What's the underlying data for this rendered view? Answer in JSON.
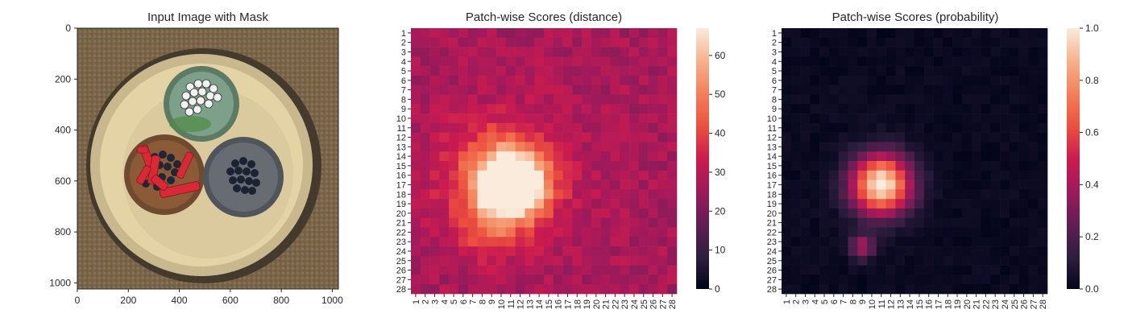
{
  "panels": [
    {
      "title": "Input Image with Mask",
      "xticks": [
        "0",
        "200",
        "400",
        "600",
        "800",
        "1000"
      ],
      "yticks": [
        "0",
        "200",
        "400",
        "600",
        "800",
        "1000"
      ],
      "xtick_values": [
        0,
        200,
        400,
        600,
        800,
        1000
      ],
      "ytick_values": [
        0,
        200,
        400,
        600,
        800,
        1000
      ],
      "extent": [
        0,
        1024
      ]
    },
    {
      "title": "Patch-wise Scores (distance)",
      "colorbar_ticks": [
        "0",
        "10",
        "20",
        "30",
        "40",
        "50",
        "60"
      ],
      "colorbar_values": [
        0,
        10,
        20,
        30,
        40,
        50,
        60
      ],
      "vmin": 0,
      "vmax": 67
    },
    {
      "title": "Patch-wise Scores (probability)",
      "colorbar_ticks": [
        "0.0",
        "0.2",
        "0.4",
        "0.6",
        "0.8",
        "1.0"
      ],
      "colorbar_values": [
        0.0,
        0.2,
        0.4,
        0.6,
        0.8,
        1.0
      ],
      "vmin": 0,
      "vmax": 1
    }
  ],
  "chart_data": [
    {
      "type": "image",
      "title": "Input Image with Mask",
      "xlim": [
        0,
        1024
      ],
      "ylim": [
        1024,
        0
      ],
      "description_objects": [
        "cable-cross-section",
        "green-wire",
        "brown-wire",
        "grey-wire",
        "red-mask-region"
      ]
    },
    {
      "type": "heatmap",
      "title": "Patch-wise Scores (distance)",
      "rows": [
        "1",
        "2",
        "3",
        "4",
        "5",
        "6",
        "7",
        "8",
        "9",
        "10",
        "11",
        "12",
        "13",
        "14",
        "15",
        "16",
        "17",
        "18",
        "19",
        "20",
        "21",
        "22",
        "23",
        "24",
        "25",
        "26",
        "27",
        "28"
      ],
      "cols": [
        "1",
        "2",
        "3",
        "4",
        "5",
        "6",
        "7",
        "8",
        "9",
        "10",
        "11",
        "12",
        "13",
        "14",
        "15",
        "16",
        "17",
        "18",
        "19",
        "20",
        "21",
        "22",
        "23",
        "24",
        "25",
        "26",
        "27",
        "28"
      ],
      "colormap": "rocket",
      "vmin": 0,
      "vmax": 67,
      "background": 27,
      "hotspots": [
        {
          "row": 17,
          "col": 11,
          "peak": 67,
          "sigma": 2.3
        },
        {
          "row": 16.5,
          "col": 10,
          "peak": 18,
          "sigma": 4.5
        },
        {
          "row": 22,
          "col": 8.5,
          "peak": 10,
          "sigma": 1.8
        }
      ]
    },
    {
      "type": "heatmap",
      "title": "Patch-wise Scores (probability)",
      "rows": [
        "1",
        "2",
        "3",
        "4",
        "5",
        "6",
        "7",
        "8",
        "9",
        "10",
        "11",
        "12",
        "13",
        "14",
        "15",
        "16",
        "17",
        "18",
        "19",
        "20",
        "21",
        "22",
        "23",
        "24",
        "25",
        "26",
        "27",
        "28"
      ],
      "cols": [
        "1",
        "2",
        "3",
        "4",
        "5",
        "6",
        "7",
        "8",
        "9",
        "10",
        "11",
        "12",
        "13",
        "14",
        "15",
        "16",
        "17",
        "18",
        "19",
        "20",
        "21",
        "22",
        "23",
        "24",
        "25",
        "26",
        "27",
        "28"
      ],
      "colormap": "rocket",
      "vmin": 0,
      "vmax": 1,
      "background": 0.02,
      "hotspots": [
        {
          "row": 17,
          "col": 11,
          "peak": 1.0,
          "sigma": 2.2
        },
        {
          "row": 23.5,
          "col": 9,
          "peak": 0.38,
          "sigma": 0.9
        }
      ]
    }
  ]
}
